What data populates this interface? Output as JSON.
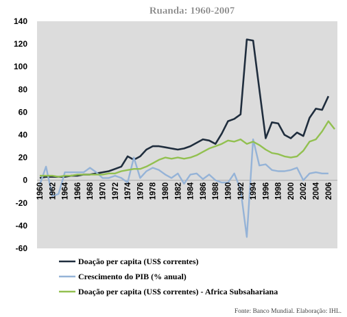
{
  "chart_data": {
    "type": "line",
    "title": "Ruanda: 1960-2007",
    "xlabel": "",
    "ylabel": "",
    "x": [
      1960,
      1961,
      1962,
      1963,
      1964,
      1965,
      1966,
      1967,
      1968,
      1969,
      1970,
      1971,
      1972,
      1973,
      1974,
      1975,
      1976,
      1977,
      1978,
      1979,
      1980,
      1981,
      1982,
      1983,
      1984,
      1985,
      1986,
      1987,
      1988,
      1989,
      1990,
      1991,
      1992,
      1993,
      1994,
      1995,
      1996,
      1997,
      1998,
      1999,
      2000,
      2001,
      2002,
      2003,
      2004,
      2005,
      2006,
      2007
    ],
    "xticks": [
      "1960",
      "1962",
      "1964",
      "1966",
      "1968",
      "1970",
      "1972",
      "1974",
      "1976",
      "1978",
      "1980",
      "1982",
      "1984",
      "1986",
      "1988",
      "1990",
      "1992",
      "1994",
      "1996",
      "1998",
      "2000",
      "2002",
      "2004",
      "2006"
    ],
    "ylim": [
      -60,
      140
    ],
    "yticks": [
      "-60",
      "-40",
      "-20",
      "0",
      "20",
      "40",
      "60",
      "80",
      "100",
      "120",
      "140"
    ],
    "ytick_values": [
      -60,
      -40,
      -20,
      0,
      20,
      40,
      60,
      80,
      100,
      120,
      140
    ],
    "grid": false,
    "legend_position": "bottom",
    "series": [
      {
        "name": "Doação per capita (US$ correntes)",
        "color": "#1f2d3d",
        "values": [
          2,
          3,
          3,
          3,
          3,
          4,
          4,
          5,
          5,
          6,
          7,
          8,
          10,
          12,
          21,
          18,
          21,
          27,
          30,
          30,
          29,
          28,
          27,
          28,
          30,
          33,
          36,
          35,
          32,
          41,
          52,
          54,
          58,
          124,
          123,
          80,
          37,
          51,
          50,
          40,
          37,
          42,
          39,
          55,
          63,
          62,
          74,
          null
        ]
      },
      {
        "name": "Crescimento do PIB (% anual)",
        "color": "#95b3d7",
        "values": [
          -4,
          12,
          -14,
          -12,
          7,
          7,
          7,
          7,
          11,
          7,
          2,
          2,
          4,
          2,
          -2,
          20,
          2,
          8,
          11,
          9,
          5,
          2,
          6,
          -3,
          5,
          6,
          1,
          5,
          0,
          -2,
          -2,
          6,
          -8,
          -50,
          36,
          13,
          14,
          9,
          8,
          8,
          9,
          11,
          0,
          6,
          7,
          6,
          6,
          null
        ]
      },
      {
        "name": "Doação per capita (US$ correntes) - Africa Subsahariana",
        "color": "#92c050",
        "values": [
          4,
          4,
          4,
          3,
          4,
          4,
          5,
          5,
          5,
          5,
          5,
          6,
          6,
          8,
          9,
          10,
          10,
          12,
          15,
          18,
          20,
          19,
          20,
          19,
          20,
          22,
          25,
          28,
          30,
          32,
          35,
          34,
          36,
          32,
          34,
          31,
          27,
          24,
          23,
          21,
          20,
          21,
          26,
          34,
          36,
          43,
          52,
          45
        ]
      }
    ]
  },
  "source_note": "Fonte: Banco Mundial. Elaboração: IHL."
}
